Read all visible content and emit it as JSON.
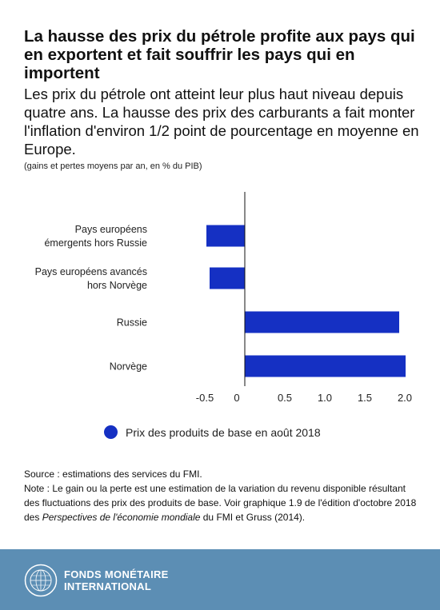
{
  "title": "La hausse des prix du pétrole profite aux pays qui en exportent et fait souffrir les pays qui en importent",
  "subtitle": "Les prix du pétrole ont atteint leur plus haut niveau depuis quatre ans. La hausse des prix des carburants a fait monter l'inflation d'environ 1/2 point de pourcentage en moyenne en Europe.",
  "unit_note": "(gains et pertes moyens par an, en % du PIB)",
  "chart_data": {
    "type": "bar",
    "orientation": "horizontal",
    "categories": [
      [
        "Pays européens",
        "émergents hors Russie"
      ],
      [
        "Pays européens avancés",
        "hors Norvège"
      ],
      [
        "Russie"
      ],
      [
        "Norvège"
      ]
    ],
    "series": [
      {
        "name": "Prix des produits de base en août 2018",
        "values": [
          -0.48,
          -0.44,
          1.93,
          2.01
        ]
      }
    ],
    "x_ticks": [
      "-0.5",
      "0",
      "0.5",
      "1.0",
      "1.5",
      "2.0"
    ],
    "x_tick_values": [
      -0.5,
      0,
      0.5,
      1.0,
      1.5,
      2.0
    ],
    "xlim": [
      -0.8,
      2.1
    ],
    "grid": false,
    "legend_position": "bottom",
    "bar_color": "#1530c3"
  },
  "source": "Source : estimations des services du FMI.",
  "note": {
    "prefix": "Note : Le gain ou la perte est une estimation de la variation du revenu disponible résultant des fluctuations des prix des produits de base. Voir graphique 1.9 de l'édition d'octobre 2018 des ",
    "italic": "Perspectives de l'économie mondiale",
    "suffix": " du FMI et Gruss (2014)."
  },
  "footer": {
    "logo_line1": "FONDS MONÉTAIRE",
    "logo_line2": "INTERNATIONAL",
    "background": "#5c8eb4"
  }
}
